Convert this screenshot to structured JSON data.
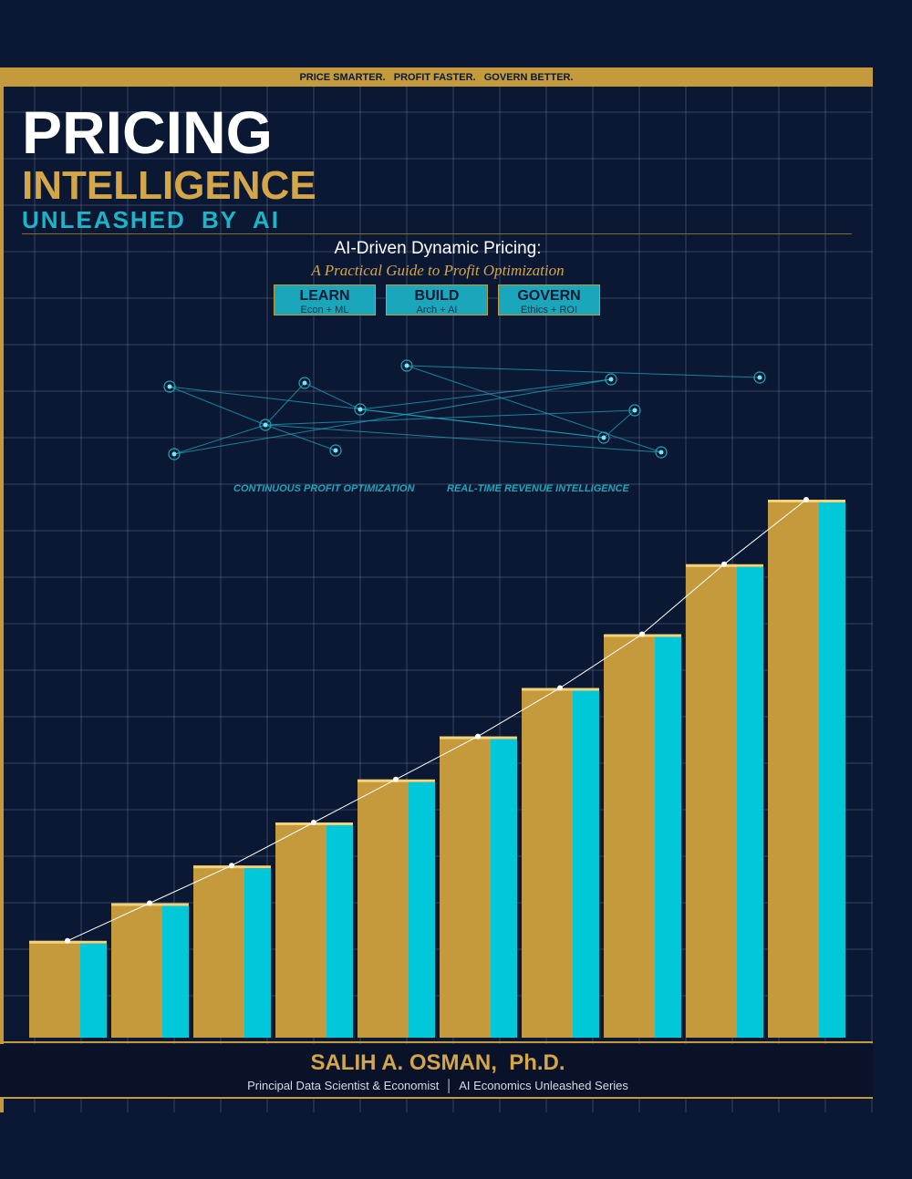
{
  "banner": {
    "tagline": "PRICE SMARTER.   PROFIT FASTER.   GOVERN BETTER."
  },
  "title": {
    "line1": "PRICING",
    "line2": "INTELLIGENCE",
    "line3": "UNLEASHED BY AI"
  },
  "subtitle": {
    "main": "AI-Driven Dynamic Pricing:",
    "italic": "A Practical Guide to Profit Optimization"
  },
  "pillars": [
    {
      "label": "LEARN",
      "sub": "Econ + ML"
    },
    {
      "label": "BUILD",
      "sub": "Arch + AI"
    },
    {
      "label": "GOVERN",
      "sub": "Ethics + ROI"
    }
  ],
  "taglines": {
    "left": "CONTINUOUS PROFIT OPTIMIZATION",
    "right": "REAL-TIME REVENUE INTELLIGENCE"
  },
  "author": {
    "name": "SALIH A. OSMAN,  Ph.D.",
    "credentials": "Principal Data Scientist & Economist  │  AI Economics Unleashed Series"
  },
  "colors": {
    "background": "#0b1834",
    "gold": "#c49a3c",
    "cyan": "#00c8d8",
    "grid": "#5a6a8e"
  },
  "bars": {
    "heights_relative": [
      0.18,
      0.25,
      0.32,
      0.4,
      0.48,
      0.56,
      0.65,
      0.75,
      0.88,
      1.0
    ]
  }
}
